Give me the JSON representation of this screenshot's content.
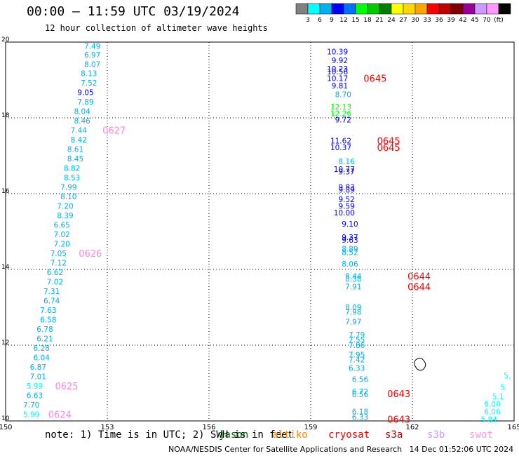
{
  "header": {
    "title": "00:00 – 11:59 UTC 03/19/2024",
    "subtitle": "12 hour collection of altimeter wave heights"
  },
  "colorbar": {
    "colors": [
      "#808080",
      "#00ffff",
      "#00b0f0",
      "#0000ff",
      "#0070ff",
      "#00ff00",
      "#00cc00",
      "#008000",
      "#ffff00",
      "#ffd700",
      "#ffa500",
      "#ff0000",
      "#c00000",
      "#800000",
      "#990099",
      "#cc99ff",
      "#ff99ff",
      "#000000"
    ],
    "labels": [
      "3",
      "6",
      "9",
      "12",
      "15",
      "18",
      "21",
      "24",
      "27",
      "30",
      "33",
      "36",
      "39",
      "42",
      "45",
      "70",
      "(ft)"
    ]
  },
  "chart_data": {
    "type": "scatter",
    "xlim": [
      150,
      165
    ],
    "ylim": [
      10,
      20
    ],
    "x_ticks": [
      "150",
      "153",
      "156",
      "159",
      "162",
      "165"
    ],
    "y_ticks": [
      "10",
      "12",
      "14",
      "16",
      "18",
      "20"
    ],
    "grid": true,
    "series": [
      {
        "name": "jason",
        "points": [
          {
            "lon": 152.8,
            "lat": 19.9,
            "v": "7.49",
            "c": "#00b0f0"
          },
          {
            "lon": 152.8,
            "lat": 19.67,
            "v": "6.97",
            "c": "#00b0f0"
          },
          {
            "lon": 152.8,
            "lat": 19.42,
            "v": "8.07",
            "c": "#00b0f0"
          },
          {
            "lon": 152.7,
            "lat": 19.18,
            "v": "8.13",
            "c": "#00b0f0"
          },
          {
            "lon": 152.7,
            "lat": 18.93,
            "v": "7.52",
            "c": "#00b0f0"
          },
          {
            "lon": 152.6,
            "lat": 18.68,
            "v": "9.05",
            "c": "#0000ff"
          },
          {
            "lon": 152.6,
            "lat": 18.43,
            "v": "7.89",
            "c": "#00b0f0"
          },
          {
            "lon": 152.5,
            "lat": 18.18,
            "v": "8.04",
            "c": "#00b0f0"
          },
          {
            "lon": 152.5,
            "lat": 17.93,
            "v": "8.46",
            "c": "#00b0f0"
          },
          {
            "lon": 152.4,
            "lat": 17.68,
            "v": "7.44",
            "c": "#00b0f0"
          },
          {
            "lon": 152.4,
            "lat": 17.43,
            "v": "8.42",
            "c": "#00b0f0"
          },
          {
            "lon": 152.3,
            "lat": 17.18,
            "v": "8.61",
            "c": "#00b0f0"
          },
          {
            "lon": 152.3,
            "lat": 16.93,
            "v": "8.45",
            "c": "#00b0f0"
          },
          {
            "lon": 152.2,
            "lat": 16.68,
            "v": "8.82",
            "c": "#00b0f0"
          },
          {
            "lon": 152.2,
            "lat": 16.43,
            "v": "8.53",
            "c": "#00b0f0"
          },
          {
            "lon": 152.1,
            "lat": 16.18,
            "v": "7.99",
            "c": "#00b0f0"
          },
          {
            "lon": 152.1,
            "lat": 15.93,
            "v": "8.10",
            "c": "#00b0f0"
          },
          {
            "lon": 152.0,
            "lat": 15.68,
            "v": "7.20",
            "c": "#00b0f0"
          },
          {
            "lon": 152.0,
            "lat": 15.43,
            "v": "8.39",
            "c": "#00b0f0"
          },
          {
            "lon": 151.9,
            "lat": 15.18,
            "v": "6.65",
            "c": "#00b0f0"
          },
          {
            "lon": 151.9,
            "lat": 14.93,
            "v": "7.02",
            "c": "#00b0f0"
          },
          {
            "lon": 151.9,
            "lat": 14.68,
            "v": "7.20",
            "c": "#00b0f0"
          },
          {
            "lon": 151.8,
            "lat": 14.43,
            "v": "7.05",
            "c": "#00b0f0"
          },
          {
            "lon": 151.8,
            "lat": 14.18,
            "v": "7.12",
            "c": "#00b0f0"
          },
          {
            "lon": 151.7,
            "lat": 13.93,
            "v": "6.62",
            "c": "#00b0f0"
          },
          {
            "lon": 151.7,
            "lat": 13.68,
            "v": "7.02",
            "c": "#00b0f0"
          },
          {
            "lon": 151.6,
            "lat": 13.43,
            "v": "7.31",
            "c": "#00b0f0"
          },
          {
            "lon": 151.6,
            "lat": 13.18,
            "v": "6.74",
            "c": "#00b0f0"
          },
          {
            "lon": 151.5,
            "lat": 12.93,
            "v": "7.63",
            "c": "#00b0f0"
          },
          {
            "lon": 151.5,
            "lat": 12.68,
            "v": "6.58",
            "c": "#00b0f0"
          },
          {
            "lon": 151.4,
            "lat": 12.43,
            "v": "6.78",
            "c": "#00b0f0"
          },
          {
            "lon": 151.4,
            "lat": 12.18,
            "v": "6.21",
            "c": "#00b0f0"
          },
          {
            "lon": 151.3,
            "lat": 11.93,
            "v": "6.28",
            "c": "#00b0f0"
          },
          {
            "lon": 151.3,
            "lat": 11.68,
            "v": "6.04",
            "c": "#00b0f0"
          },
          {
            "lon": 151.2,
            "lat": 11.43,
            "v": "6.87",
            "c": "#00b0f0"
          },
          {
            "lon": 151.2,
            "lat": 11.18,
            "v": "7.01",
            "c": "#00b0f0"
          },
          {
            "lon": 151.1,
            "lat": 10.93,
            "v": "5.99",
            "c": "#00ffff"
          },
          {
            "lon": 151.1,
            "lat": 10.68,
            "v": "6.63",
            "c": "#00b0f0"
          },
          {
            "lon": 151.0,
            "lat": 10.43,
            "v": "7.70",
            "c": "#00b0f0"
          },
          {
            "lon": 151.0,
            "lat": 10.18,
            "v": "5.99",
            "c": "#00ffff"
          }
        ]
      },
      {
        "name": "jason-b",
        "points": [
          {
            "lon": 160.1,
            "lat": 19.75,
            "v": "10.39",
            "c": "#0000ff"
          },
          {
            "lon": 160.1,
            "lat": 19.52,
            "v": "9.92",
            "c": "#0000ff"
          },
          {
            "lon": 160.1,
            "lat": 19.3,
            "v": "10.23",
            "c": "#0000ff"
          },
          {
            "lon": 160.1,
            "lat": 19.22,
            "v": "10.56",
            "c": "#0000ff"
          },
          {
            "lon": 160.1,
            "lat": 19.05,
            "v": "10.17",
            "c": "#0000ff"
          },
          {
            "lon": 160.1,
            "lat": 18.85,
            "v": "9.81",
            "c": "#0000ff"
          },
          {
            "lon": 160.2,
            "lat": 18.62,
            "v": "8.70",
            "c": "#00b0f0"
          },
          {
            "lon": 160.2,
            "lat": 18.3,
            "v": "12.13",
            "c": "#00ff00"
          },
          {
            "lon": 160.2,
            "lat": 18.12,
            "v": "12.26",
            "c": "#00ff00"
          },
          {
            "lon": 160.2,
            "lat": 17.95,
            "v": "9.72",
            "c": "#0000ff"
          },
          {
            "lon": 160.2,
            "lat": 17.4,
            "v": "11.62",
            "c": "#0000ff"
          },
          {
            "lon": 160.2,
            "lat": 17.22,
            "v": "10.37",
            "c": "#0000ff"
          },
          {
            "lon": 160.3,
            "lat": 16.85,
            "v": "8.16",
            "c": "#00b0f0"
          },
          {
            "lon": 160.3,
            "lat": 16.65,
            "v": "10.77",
            "c": "#0000ff"
          },
          {
            "lon": 160.3,
            "lat": 16.58,
            "v": "9.37",
            "c": "#0000ff"
          },
          {
            "lon": 160.3,
            "lat": 16.18,
            "v": "9.83",
            "c": "#0000ff"
          },
          {
            "lon": 160.3,
            "lat": 16.1,
            "v": "9.89",
            "c": "#0000ff"
          },
          {
            "lon": 160.3,
            "lat": 15.85,
            "v": "9.52",
            "c": "#0000ff"
          },
          {
            "lon": 160.3,
            "lat": 15.68,
            "v": "9.59",
            "c": "#0000ff"
          },
          {
            "lon": 160.3,
            "lat": 15.5,
            "v": "10.00",
            "c": "#0000ff"
          },
          {
            "lon": 160.4,
            "lat": 15.2,
            "v": "9.10",
            "c": "#0000ff"
          },
          {
            "lon": 160.4,
            "lat": 14.85,
            "v": "9.37",
            "c": "#0000ff"
          },
          {
            "lon": 160.4,
            "lat": 14.78,
            "v": "9.63",
            "c": "#0000ff"
          },
          {
            "lon": 160.4,
            "lat": 14.55,
            "v": "8.89",
            "c": "#00b0f0"
          },
          {
            "lon": 160.4,
            "lat": 14.45,
            "v": "8.52",
            "c": "#00b0f0"
          },
          {
            "lon": 160.4,
            "lat": 14.15,
            "v": "8.06",
            "c": "#00b0f0"
          },
          {
            "lon": 160.5,
            "lat": 13.82,
            "v": "8.44",
            "c": "#00b0f0"
          },
          {
            "lon": 160.5,
            "lat": 13.75,
            "v": "8.38",
            "c": "#00b0f0"
          },
          {
            "lon": 160.5,
            "lat": 13.55,
            "v": "7.91",
            "c": "#00b0f0"
          },
          {
            "lon": 160.5,
            "lat": 13.0,
            "v": "8.09",
            "c": "#00b0f0"
          },
          {
            "lon": 160.5,
            "lat": 12.88,
            "v": "7.98",
            "c": "#00b0f0"
          },
          {
            "lon": 160.5,
            "lat": 12.62,
            "v": "7.97",
            "c": "#00b0f0"
          },
          {
            "lon": 160.6,
            "lat": 12.28,
            "v": "7.79",
            "c": "#00b0f0"
          },
          {
            "lon": 160.6,
            "lat": 12.15,
            "v": "7.55",
            "c": "#00b0f0"
          },
          {
            "lon": 160.6,
            "lat": 12.0,
            "v": "7.86",
            "c": "#00b0f0"
          },
          {
            "lon": 160.6,
            "lat": 11.75,
            "v": "7.95",
            "c": "#00b0f0"
          },
          {
            "lon": 160.6,
            "lat": 11.62,
            "v": "7.42",
            "c": "#00b0f0"
          },
          {
            "lon": 160.6,
            "lat": 11.4,
            "v": "6.33",
            "c": "#00b0f0"
          },
          {
            "lon": 160.7,
            "lat": 11.1,
            "v": "6.56",
            "c": "#00b0f0"
          },
          {
            "lon": 160.7,
            "lat": 10.78,
            "v": "6.72",
            "c": "#00b0f0"
          },
          {
            "lon": 160.7,
            "lat": 10.7,
            "v": "6.56",
            "c": "#00b0f0"
          },
          {
            "lon": 160.7,
            "lat": 10.25,
            "v": "6.18",
            "c": "#00b0f0"
          },
          {
            "lon": 160.7,
            "lat": 10.1,
            "v": "6.33",
            "c": "#00b0f0"
          }
        ]
      },
      {
        "name": "right-edge",
        "points": [
          {
            "lon": 164.9,
            "lat": 11.2,
            "v": "5.",
            "c": "#00ffff"
          },
          {
            "lon": 164.8,
            "lat": 10.9,
            "v": "5.",
            "c": "#00ffff"
          },
          {
            "lon": 164.7,
            "lat": 10.65,
            "v": "5.1",
            "c": "#00ffff"
          },
          {
            "lon": 164.6,
            "lat": 10.45,
            "v": "6.00",
            "c": "#00ffff"
          },
          {
            "lon": 164.6,
            "lat": 10.25,
            "v": "6.06",
            "c": "#00ffff"
          },
          {
            "lon": 164.5,
            "lat": 10.05,
            "v": "5.84",
            "c": "#00ffff"
          }
        ]
      }
    ],
    "time_labels": [
      {
        "lon": 153.2,
        "lat": 17.68,
        "text": "0627",
        "c": "#ff88dd"
      },
      {
        "lon": 152.5,
        "lat": 14.43,
        "text": "0626",
        "c": "#ff88dd"
      },
      {
        "lon": 151.8,
        "lat": 10.93,
        "text": "0625",
        "c": "#ff88dd"
      },
      {
        "lon": 151.6,
        "lat": 10.18,
        "text": "0624",
        "c": "#ff88dd"
      },
      {
        "lon": 160.9,
        "lat": 19.05,
        "text": "0645",
        "c": "#ff0000"
      },
      {
        "lon": 161.3,
        "lat": 17.4,
        "text": "0645",
        "c": "#ff0000"
      },
      {
        "lon": 161.3,
        "lat": 17.22,
        "text": "0645",
        "c": "#ff0000"
      },
      {
        "lon": 162.2,
        "lat": 13.82,
        "text": "0644",
        "c": "#ff0000"
      },
      {
        "lon": 162.2,
        "lat": 13.55,
        "text": "0644",
        "c": "#ff0000"
      },
      {
        "lon": 161.6,
        "lat": 10.72,
        "text": "0643",
        "c": "#ff0000"
      },
      {
        "lon": 161.6,
        "lat": 10.05,
        "text": "0643",
        "c": "#ff0000"
      }
    ]
  },
  "footer": {
    "note": "note: 1) Time is in UTC; 2) SWH is in feet",
    "satellites": [
      {
        "name": "jason",
        "color": "#006600"
      },
      {
        "name": "altiko",
        "color": "#ff8c00"
      },
      {
        "name": "cryosat",
        "color": "#ff0000"
      },
      {
        "name": "s3a",
        "color": "#cc0000"
      },
      {
        "name": "s3b",
        "color": "#cc99ff"
      },
      {
        "name": "swot",
        "color": "#ff99dd"
      }
    ],
    "credit": "NOAA/NESDIS Center for Satellite Applications and Research   14 Dec 01:52:06 UTC 2024"
  }
}
